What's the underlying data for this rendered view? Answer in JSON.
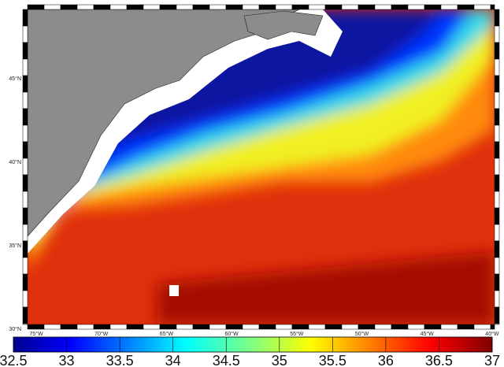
{
  "map": {
    "lat_labels": [
      "30°N",
      "35°N",
      "40°N",
      "45°N"
    ],
    "lon_labels": [
      "75°W",
      "70°W",
      "65°W",
      "60°W",
      "55°W",
      "50°W",
      "45°W",
      "40°W"
    ]
  },
  "colorbar": {
    "range": [
      32.5,
      37
    ],
    "ticks": [
      32.5,
      33,
      33.5,
      34,
      34.5,
      35,
      35.5,
      36,
      36.5,
      37
    ]
  }
}
